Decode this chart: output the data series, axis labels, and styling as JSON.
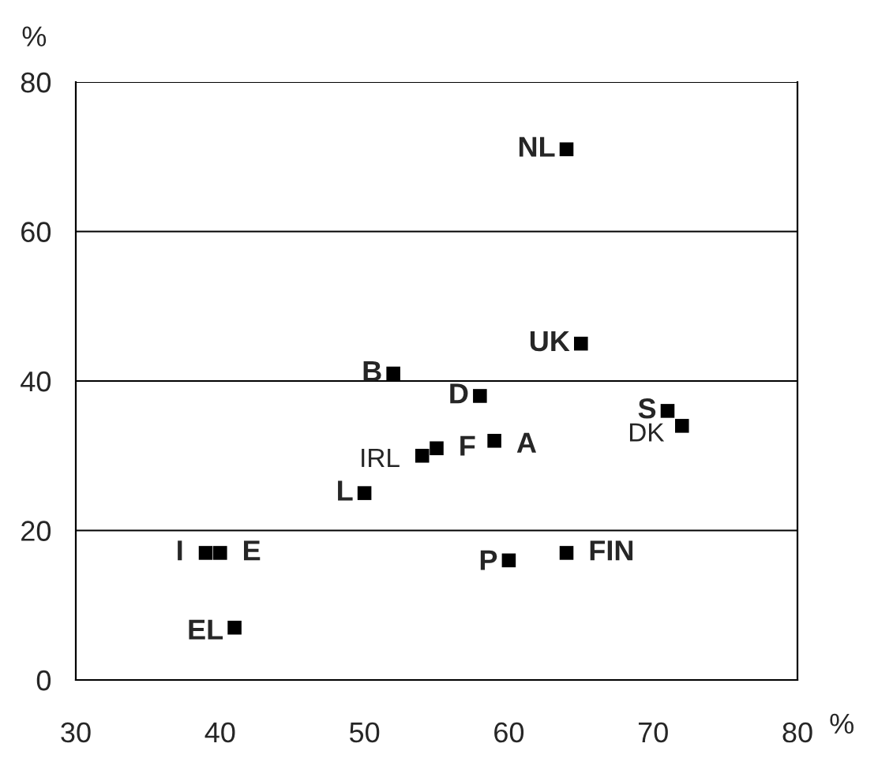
{
  "chart_data": {
    "type": "scatter",
    "xlabel": "%",
    "ylabel": "%",
    "x": [
      64,
      65,
      52,
      58,
      71,
      72,
      54,
      55,
      59,
      50,
      39,
      40,
      60,
      64,
      41
    ],
    "values": [
      71,
      45,
      41,
      38,
      36,
      34,
      30,
      31,
      32,
      25,
      17,
      17,
      16,
      17,
      7
    ],
    "color": "#000000",
    "marker": "square",
    "xlim": [
      30,
      80
    ],
    "xticks": [
      30,
      40,
      50,
      60,
      70,
      80
    ],
    "ylim": [
      0,
      80
    ],
    "yticks": [
      0,
      20,
      40,
      60,
      80
    ],
    "grid": "y",
    "annotations": [
      {
        "text": "NL",
        "x": 64,
        "y": 71
      },
      {
        "text": "UK",
        "x": 65,
        "y": 45
      },
      {
        "text": "B",
        "x": 52,
        "y": 41
      },
      {
        "text": "D",
        "x": 58,
        "y": 38
      },
      {
        "text": "S",
        "x": 71,
        "y": 36
      },
      {
        "text": "DK",
        "x": 72,
        "y": 34
      },
      {
        "text": "IRL",
        "x": 54,
        "y": 30
      },
      {
        "text": "F",
        "x": 55,
        "y": 31
      },
      {
        "text": "A",
        "x": 59,
        "y": 32
      },
      {
        "text": "L",
        "x": 50,
        "y": 25
      },
      {
        "text": "I",
        "x": 39,
        "y": 17
      },
      {
        "text": "E",
        "x": 40,
        "y": 17
      },
      {
        "text": "P",
        "x": 60,
        "y": 16
      },
      {
        "text": "FIN",
        "x": 64,
        "y": 17
      },
      {
        "text": "EL",
        "x": 41,
        "y": 7
      }
    ]
  }
}
